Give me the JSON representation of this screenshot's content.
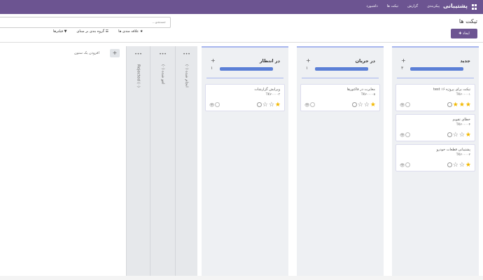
{
  "nav": {
    "brand": "پشتیبانی",
    "menu": [
      "داشبورد",
      "تیکت ها",
      "گزارش",
      "پیکربندی"
    ]
  },
  "control": {
    "title": "تیکت ها",
    "create_label": "✚ ایجاد",
    "search_placeholder": "جستجو...",
    "filters_label": "▼ فیلترها",
    "groupby_label": "☰ گروه بندی بر مبنای",
    "favorites_label": "★ علاقه مندی ها"
  },
  "columns": [
    {
      "name": "جدید",
      "count": "۳",
      "progress": 1.0,
      "cards": [
        {
          "title": "تیکت برای پروژه ۱۶ test",
          "ref": "TK۲۰۰۰۰۱",
          "stars": 3
        },
        {
          "title": "خطای تقویم",
          "ref": "TK۲۰۰۰۰۴",
          "stars": 1
        },
        {
          "title": "پشتیبانی قطعات خودرو",
          "ref": "TK۲۰۰۰۰۲",
          "stars": 1
        }
      ]
    },
    {
      "name": "در جریان",
      "count": "۱",
      "progress": 1.0,
      "cards": [
        {
          "title": "مغایرت در فاکتورها",
          "ref": "TK۲۰۰۰۰۵",
          "stars": 1
        }
      ]
    },
    {
      "name": "در انتظار",
      "count": "۱",
      "progress": 1.0,
      "cards": [
        {
          "title": "ویرایش گزارشات",
          "ref": "TK۲۰۰۰۰۳",
          "stars": 1
        }
      ]
    }
  ],
  "folded_columns": [
    {
      "label": "انجام شده (۰)"
    },
    {
      "label": "لغو شده (۰)"
    },
    {
      "label": "Rejected (۰)"
    }
  ],
  "add_column_label": "افزودن یک ستون"
}
